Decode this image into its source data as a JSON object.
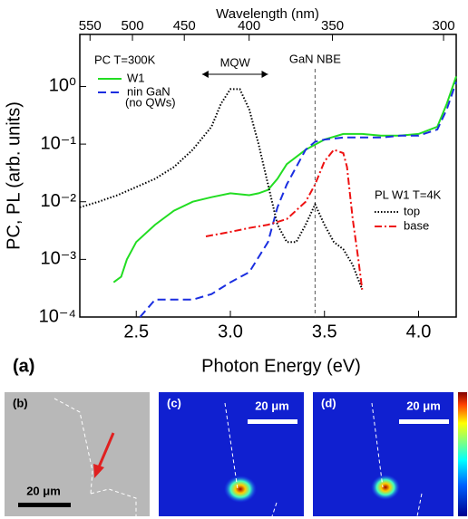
{
  "chart_data": {
    "type": "line",
    "x_label": "Photon Energy (eV)",
    "y_label": "PC, PL (arb. units)",
    "x2_label": "Wavelength (nm)",
    "panel_label": "(a)",
    "log_y": true,
    "xlim": [
      2.2,
      4.2
    ],
    "ylim": [
      0.0001,
      8
    ],
    "xticks": [
      2.5,
      {
        "value": 3,
        "label": "3.0"
      },
      3.5,
      {
        "value": 4,
        "label": "4.0"
      }
    ],
    "yticks": [
      {
        "value": 0.0001,
        "label": "10⁻⁴"
      },
      {
        "value": 0.001,
        "label": "10⁻³"
      },
      {
        "value": 0.01,
        "label": "10⁻²"
      },
      {
        "value": 0.1,
        "label": "10⁻¹"
      },
      {
        "value": 1,
        "label": "10⁰"
      }
    ],
    "x2ticks": [
      550,
      500,
      450,
      400,
      350,
      300
    ],
    "annotations": {
      "pc_title": "PC T=300K",
      "pl_title": "PL W1 T=4K",
      "mqw": "MQW",
      "nbe": "GaN NBE",
      "no_qws": "(no QWs)"
    },
    "nbe_energy": 3.45,
    "mqw_range": [
      2.85,
      3.2
    ],
    "series": [
      {
        "name": "W1",
        "color": "#22dd22",
        "style": "solid",
        "x": [
          2.38,
          2.42,
          2.45,
          2.5,
          2.6,
          2.7,
          2.8,
          2.9,
          3.0,
          3.1,
          3.15,
          3.2,
          3.25,
          3.3,
          3.4,
          3.5,
          3.6,
          3.7,
          3.8,
          3.9,
          4.0,
          4.1,
          4.15,
          4.2
        ],
        "values": [
          0.0004,
          0.0005,
          0.001,
          0.002,
          0.004,
          0.007,
          0.01,
          0.012,
          0.014,
          0.013,
          0.014,
          0.016,
          0.025,
          0.045,
          0.08,
          0.12,
          0.15,
          0.15,
          0.14,
          0.14,
          0.15,
          0.2,
          0.5,
          1.5
        ]
      },
      {
        "name": "nin GaN",
        "color": "#1a2ee0",
        "style": "dashed",
        "x": [
          2.52,
          2.6,
          2.7,
          2.8,
          2.9,
          3.0,
          3.1,
          3.2,
          3.25,
          3.3,
          3.35,
          3.4,
          3.45,
          3.5,
          3.6,
          3.7,
          3.8,
          3.9,
          4.0,
          4.1,
          4.15,
          4.2
        ],
        "values": [
          0.0001,
          0.0002,
          0.0002,
          0.0002,
          0.00025,
          0.0004,
          0.0006,
          0.002,
          0.008,
          0.02,
          0.04,
          0.08,
          0.11,
          0.12,
          0.13,
          0.13,
          0.13,
          0.14,
          0.14,
          0.18,
          0.4,
          1.2
        ]
      },
      {
        "name": "top",
        "color": "#000000",
        "style": "dotted",
        "x": [
          2.2,
          2.3,
          2.4,
          2.5,
          2.6,
          2.7,
          2.8,
          2.9,
          2.95,
          3.0,
          3.05,
          3.1,
          3.15,
          3.2,
          3.25,
          3.3,
          3.35,
          3.4,
          3.45,
          3.5,
          3.55,
          3.6,
          3.65,
          3.7
        ],
        "values": [
          0.008,
          0.01,
          0.013,
          0.018,
          0.025,
          0.04,
          0.08,
          0.2,
          0.5,
          0.9,
          0.9,
          0.4,
          0.1,
          0.02,
          0.004,
          0.002,
          0.002,
          0.004,
          0.009,
          0.004,
          0.002,
          0.0015,
          0.0008,
          0.0003
        ]
      },
      {
        "name": "base",
        "color": "#ee1111",
        "style": "dashdot",
        "x": [
          2.87,
          3.0,
          3.1,
          3.2,
          3.3,
          3.4,
          3.45,
          3.5,
          3.55,
          3.6,
          3.62,
          3.65,
          3.68,
          3.7
        ],
        "values": [
          0.0025,
          0.003,
          0.0035,
          0.004,
          0.005,
          0.01,
          0.02,
          0.05,
          0.08,
          0.07,
          0.04,
          0.005,
          0.001,
          0.0003
        ]
      }
    ]
  },
  "panels": [
    {
      "label": "(b)",
      "scale": "20 μm"
    },
    {
      "label": "(c)",
      "scale": "20 μm"
    },
    {
      "label": "(d)",
      "scale": "20 μm"
    }
  ]
}
